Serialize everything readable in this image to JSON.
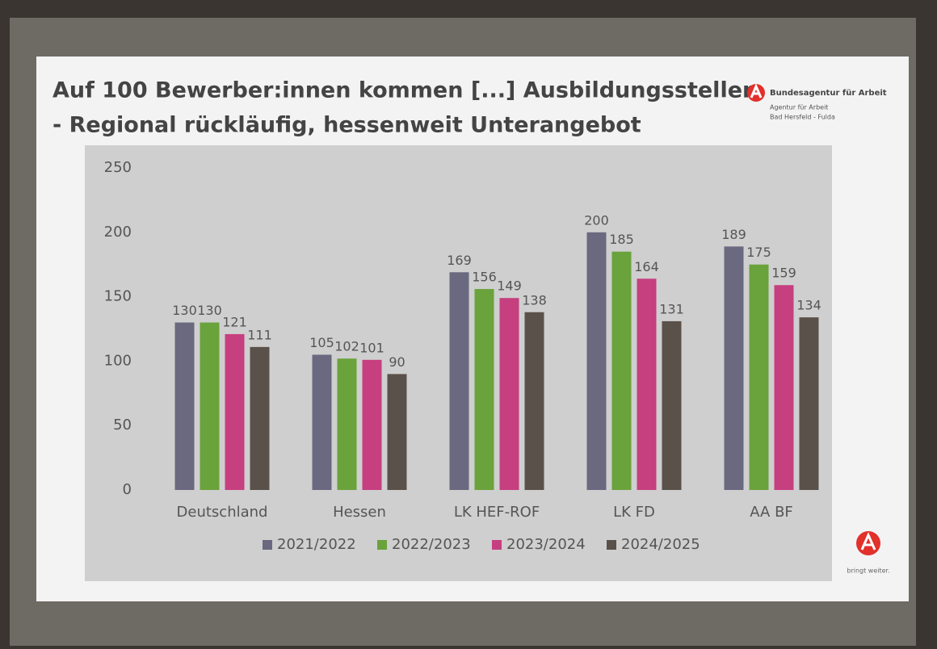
{
  "slide": {
    "title_lines": [
      "Auf 100 Bewerber:innen kommen [...] Ausbildungsstellen",
      "- Regional rückläufig, hessenweit Unterangebot"
    ],
    "logo": {
      "name": "Bundesagentur für Arbeit",
      "line1": "Agentur für Arbeit",
      "line2": "Bad Hersfeld - Fulda",
      "slogan": "bringt weiter."
    }
  },
  "chart_data": {
    "type": "bar",
    "categories": [
      "Deutschland",
      "Hessen",
      "LK HEF-ROF",
      "LK FD",
      "AA BF"
    ],
    "series": [
      {
        "name": "2021/2022",
        "color": "#6a6980",
        "values": [
          130,
          105,
          169,
          200,
          189
        ]
      },
      {
        "name": "2022/2023",
        "color": "#6aa23c",
        "values": [
          130,
          102,
          156,
          185,
          175
        ]
      },
      {
        "name": "2023/2024",
        "color": "#c63f7f",
        "values": [
          121,
          101,
          149,
          164,
          159
        ]
      },
      {
        "name": "2024/2025",
        "color": "#5a514a",
        "values": [
          111,
          90,
          138,
          131,
          134
        ]
      }
    ],
    "ylim": [
      0,
      250
    ],
    "yticks": [
      0,
      50,
      100,
      150,
      200,
      250
    ],
    "grid": false,
    "legend": "bottom"
  }
}
